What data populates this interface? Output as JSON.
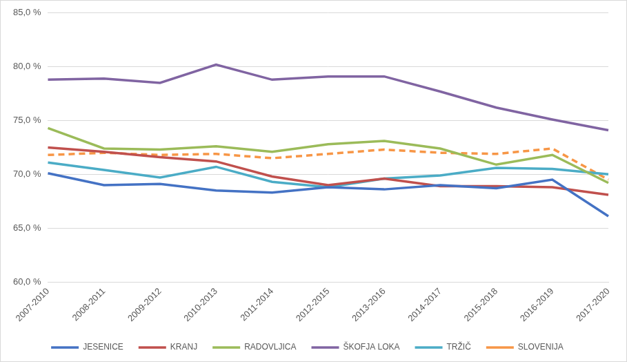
{
  "chart_data": {
    "type": "line",
    "categories": [
      "2007-2010",
      "2008-2011",
      "2009-2012",
      "2010-2013",
      "2011-2014",
      "2012-2015",
      "2013-2016",
      "2014-2017",
      "2015-2018",
      "2016-2019",
      "2017-2020"
    ],
    "series": [
      {
        "name": "JESENICE",
        "color": "#4472c4",
        "line_style": "solid",
        "values": [
          70.1,
          69.0,
          69.1,
          68.5,
          68.3,
          68.8,
          68.6,
          69.0,
          68.7,
          69.5,
          66.1
        ]
      },
      {
        "name": "KRANJ",
        "color": "#c0504d",
        "line_style": "solid",
        "values": [
          72.5,
          72.1,
          71.6,
          71.2,
          69.8,
          69.0,
          69.6,
          68.9,
          68.9,
          68.8,
          68.1
        ]
      },
      {
        "name": "RADOVLJICA",
        "color": "#9bbb59",
        "line_style": "solid",
        "values": [
          74.3,
          72.4,
          72.3,
          72.6,
          72.1,
          72.8,
          73.1,
          72.4,
          70.9,
          71.8,
          69.2
        ]
      },
      {
        "name": "ŠKOFJA LOKA",
        "color": "#8064a2",
        "line_style": "solid",
        "values": [
          78.8,
          78.9,
          78.5,
          80.2,
          78.8,
          79.1,
          79.1,
          77.7,
          76.2,
          75.1,
          74.1
        ]
      },
      {
        "name": "TRŽIČ",
        "color": "#4bacc6",
        "line_style": "solid",
        "values": [
          71.1,
          70.4,
          69.7,
          70.7,
          69.3,
          68.8,
          69.6,
          69.9,
          70.6,
          70.5,
          70.0
        ]
      },
      {
        "name": "SLOVENIJA",
        "color": "#f79646",
        "line_style": "dashed",
        "values": [
          71.8,
          72.0,
          71.8,
          71.9,
          71.5,
          71.9,
          72.3,
          72.0,
          71.9,
          72.4,
          69.5
        ]
      }
    ],
    "ylim": [
      60,
      85
    ],
    "yticks": [
      {
        "value": 60,
        "label": "60,0 %"
      },
      {
        "value": 65,
        "label": "65,0 %"
      },
      {
        "value": 70,
        "label": "70,0 %"
      },
      {
        "value": 75,
        "label": "75,0 %"
      },
      {
        "value": 80,
        "label": "80,0 %"
      },
      {
        "value": 85,
        "label": "85,0 %"
      }
    ],
    "grid": true,
    "legend": "bottom"
  }
}
